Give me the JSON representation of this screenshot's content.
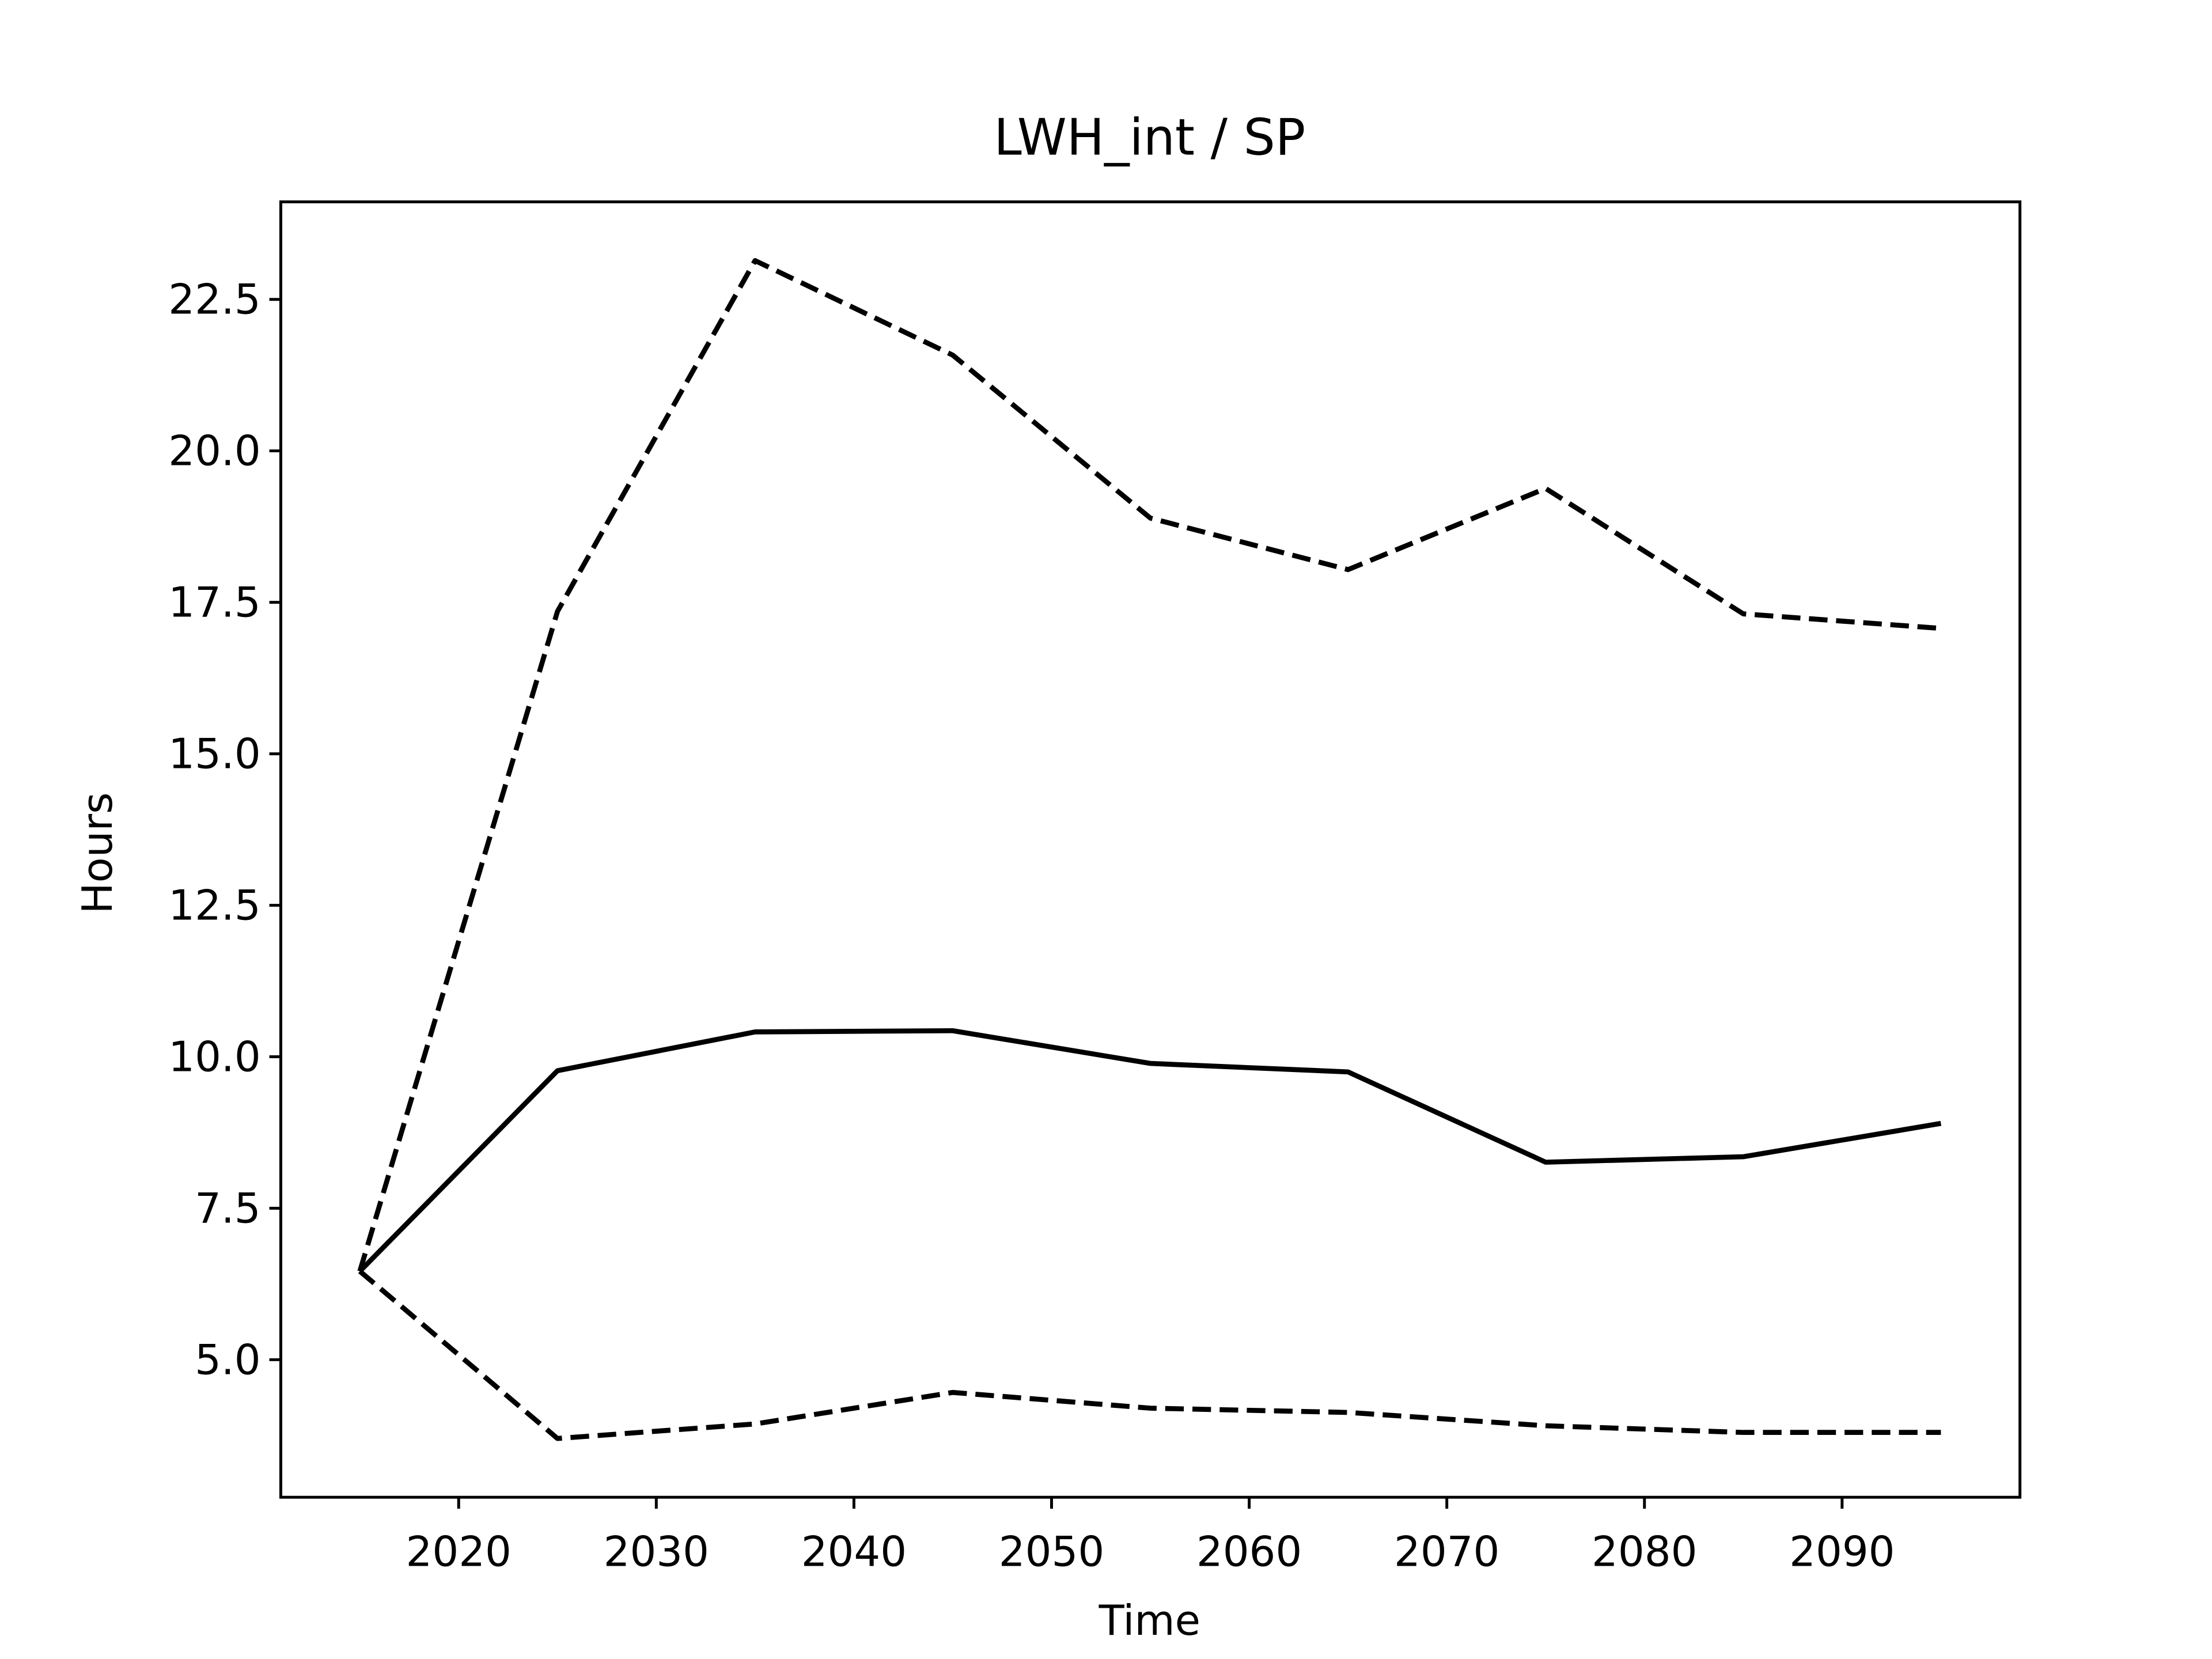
{
  "chart_data": {
    "type": "line",
    "title": "LWH_int / SP",
    "xlabel": "Time",
    "ylabel": "Hours",
    "x": [
      2015,
      2025,
      2035,
      2045,
      2055,
      2065,
      2075,
      2085,
      2095
    ],
    "series": [
      {
        "color": "#000000",
        "dashed": false,
        "values": [
          6.46,
          9.77,
          10.41,
          10.43,
          9.89,
          9.75,
          8.26,
          8.35,
          8.9
        ]
      },
      {
        "color": "#000000",
        "dashed": true,
        "values": [
          6.46,
          17.35,
          23.14,
          21.58,
          18.89,
          18.04,
          19.38,
          17.31,
          17.07
        ]
      },
      {
        "color": "#000000",
        "dashed": true,
        "values": [
          6.46,
          3.7,
          3.94,
          4.46,
          4.2,
          4.13,
          3.91,
          3.8,
          3.8
        ]
      }
    ],
    "xlim": [
      2011,
      2099
    ],
    "ylim": [
      2.73,
      24.11
    ],
    "xticks": [
      2020,
      2030,
      2040,
      2050,
      2060,
      2070,
      2080,
      2090
    ],
    "yticks": [
      {
        "value": 5,
        "label": "5.0"
      },
      7.5,
      {
        "value": 10,
        "label": "10.0"
      },
      12.5,
      {
        "value": 15,
        "label": "15.0"
      },
      17.5,
      {
        "value": 20,
        "label": "20.0"
      },
      22.5
    ],
    "grid": false
  }
}
